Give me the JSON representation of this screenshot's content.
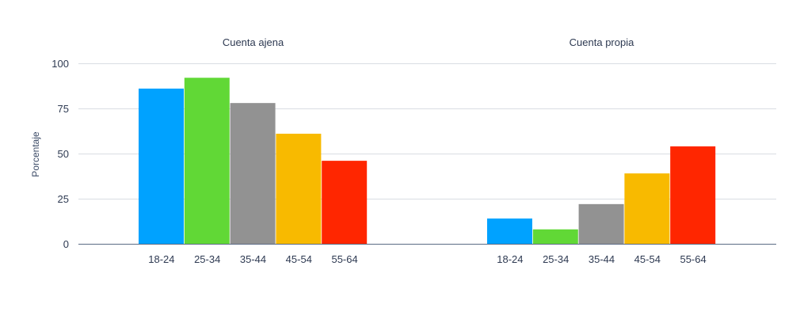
{
  "chart_data": {
    "type": "bar",
    "ylabel": "Porcentaje",
    "ylim": [
      0,
      100
    ],
    "yticks": [
      0,
      25,
      50,
      75,
      100
    ],
    "grid": true,
    "groups": [
      {
        "title": "Cuenta ajena",
        "categories": [
          "18-24",
          "25-34",
          "35-44",
          "45-54",
          "55-64"
        ],
        "values": [
          86,
          92,
          78,
          61,
          46
        ]
      },
      {
        "title": "Cuenta propia",
        "categories": [
          "18-24",
          "25-34",
          "35-44",
          "45-54",
          "55-64"
        ],
        "values": [
          14,
          8,
          22,
          39,
          54
        ]
      }
    ],
    "colors": [
      "#00a2ff",
      "#61d836",
      "#929292",
      "#f8ba00",
      "#ff2600"
    ]
  }
}
